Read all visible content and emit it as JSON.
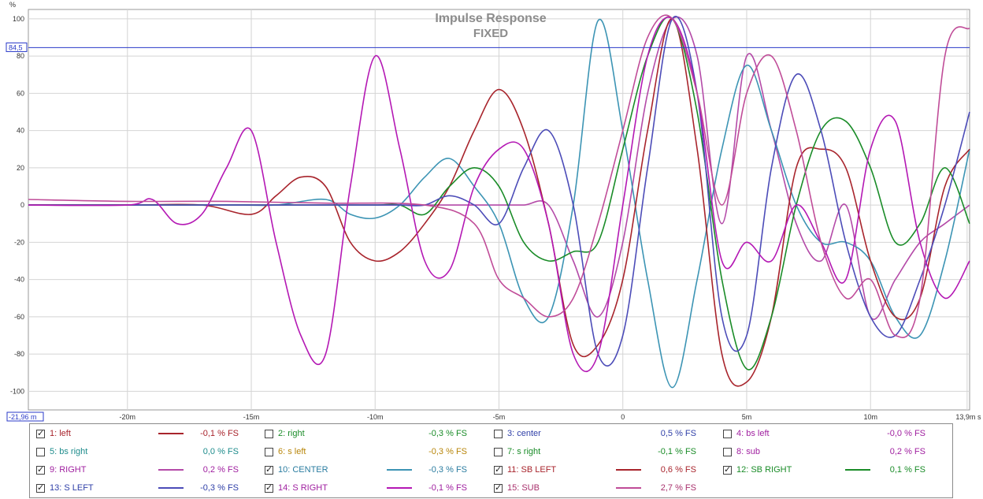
{
  "chart_data": {
    "type": "line",
    "title": "Impulse Response",
    "subtitle": "FIXED",
    "ylabel": "%",
    "x_unit_label": "s",
    "xlim": [
      -24,
      14
    ],
    "ylim": [
      -110,
      105
    ],
    "x_ticks": [
      {
        "value": -20,
        "label": "-20m"
      },
      {
        "value": -15,
        "label": "-15m"
      },
      {
        "value": -10,
        "label": "-10m"
      },
      {
        "value": -5,
        "label": "-5m"
      },
      {
        "value": 0,
        "label": "0"
      },
      {
        "value": 5,
        "label": "5m"
      },
      {
        "value": 10,
        "label": "10m"
      },
      {
        "value": 13.9,
        "label": "13,9m"
      }
    ],
    "y_ticks": [
      {
        "value": 100,
        "label": "100"
      },
      {
        "value": 80,
        "label": "80"
      },
      {
        "value": 60,
        "label": "60"
      },
      {
        "value": 40,
        "label": "40"
      },
      {
        "value": 20,
        "label": "20"
      },
      {
        "value": 0,
        "label": "0"
      },
      {
        "value": -20,
        "label": "-20"
      },
      {
        "value": -40,
        "label": "-40"
      },
      {
        "value": -60,
        "label": "-60"
      },
      {
        "value": -80,
        "label": "-80"
      },
      {
        "value": -100,
        "label": "-100"
      }
    ],
    "cursor_y": {
      "value": 84.5,
      "label": "84,5"
    },
    "cursor_x": {
      "label": "-21,96 m"
    },
    "grid": true,
    "series": [
      {
        "name": "9: RIGHT",
        "color": "#b44aa8",
        "x": [
          -24,
          -20,
          -18,
          -17,
          -16,
          -15,
          -14,
          -13,
          -12,
          -11,
          -10,
          -9,
          -8,
          -7,
          -6,
          -5,
          -4,
          -3,
          -2,
          -1,
          0,
          1,
          2,
          3,
          4,
          5,
          6,
          7,
          8,
          9,
          10,
          11,
          12,
          13,
          14
        ],
        "y": [
          0,
          0,
          0,
          0,
          0,
          0,
          0,
          0,
          0,
          0,
          0,
          0,
          0,
          0,
          0,
          0,
          0,
          0,
          -30,
          -60,
          -20,
          60,
          100,
          80,
          -10,
          80,
          40,
          -10,
          -30,
          0,
          -60,
          -40,
          -20,
          -10,
          0
        ]
      },
      {
        "name": "10: CENTER",
        "color": "#3c94b4",
        "x": [
          -24,
          -16,
          -14,
          -12,
          -11,
          -10,
          -9,
          -8,
          -7,
          -6,
          -5,
          -4,
          -3,
          -2,
          -1,
          0,
          1,
          2,
          3,
          4,
          5,
          6,
          7,
          8,
          9,
          10,
          11,
          12,
          13,
          14
        ],
        "y": [
          0,
          0,
          0,
          3,
          -5,
          -7,
          0,
          15,
          25,
          10,
          -10,
          -50,
          -60,
          0,
          99,
          40,
          -40,
          -98,
          -40,
          30,
          75,
          40,
          0,
          -20,
          -20,
          -30,
          -60,
          -70,
          -30,
          30
        ]
      },
      {
        "name": "11: SB LEFT",
        "color": "#a8242c",
        "x": [
          -24,
          -20,
          -17,
          -15,
          -14,
          -13,
          -12,
          -11,
          -10,
          -9,
          -8,
          -7,
          -6,
          -5,
          -4,
          -3,
          -2,
          -1,
          0,
          1,
          2,
          3,
          4,
          5,
          6,
          7,
          8,
          9,
          10,
          11,
          12,
          13,
          14
        ],
        "y": [
          0,
          0,
          0,
          -5,
          5,
          15,
          10,
          -20,
          -30,
          -25,
          -10,
          10,
          40,
          62,
          40,
          -10,
          -75,
          -75,
          -40,
          40,
          100,
          30,
          -80,
          -95,
          -60,
          20,
          30,
          20,
          -30,
          -60,
          -50,
          10,
          30
        ]
      },
      {
        "name": "12: SB RIGHT",
        "color": "#1a8c28",
        "x": [
          -24,
          -14,
          -12,
          -10,
          -9,
          -8,
          -7,
          -6,
          -5,
          -4,
          -3,
          -2,
          -1,
          0,
          1,
          2,
          3,
          4,
          5,
          6,
          7,
          8,
          9,
          10,
          11,
          12,
          13,
          14
        ],
        "y": [
          0,
          0,
          0,
          0,
          0,
          -5,
          10,
          20,
          10,
          -20,
          -30,
          -25,
          -20,
          30,
          80,
          100,
          50,
          -40,
          -88,
          -60,
          0,
          40,
          45,
          20,
          -20,
          -10,
          20,
          -10
        ]
      },
      {
        "name": "13: S LEFT",
        "color": "#4c4cb8",
        "x": [
          -24,
          -15,
          -12,
          -10,
          -9,
          -8,
          -7,
          -6,
          -5,
          -4,
          -3,
          -2,
          -1,
          0,
          1,
          2,
          3,
          4,
          5,
          6,
          7,
          8,
          9,
          10,
          11,
          12,
          13,
          14
        ],
        "y": [
          0,
          0,
          0,
          0,
          0,
          0,
          5,
          0,
          -10,
          20,
          40,
          0,
          -80,
          -70,
          20,
          100,
          60,
          -60,
          -70,
          20,
          70,
          40,
          -20,
          -60,
          -70,
          -40,
          0,
          50
        ]
      },
      {
        "name": "14: S RIGHT",
        "color": "#b418b4",
        "x": [
          -24,
          -20,
          -19,
          -18,
          -17,
          -16,
          -15,
          -14,
          -13,
          -12,
          -11,
          -10,
          -9,
          -8,
          -7,
          -6,
          -5,
          -4,
          -3,
          -2,
          -1,
          0,
          1,
          2,
          3,
          4,
          5,
          6,
          7,
          8,
          9,
          10,
          11,
          12,
          13,
          14
        ],
        "y": [
          0,
          0,
          3,
          -10,
          -5,
          20,
          40,
          -20,
          -70,
          -80,
          10,
          80,
          30,
          -30,
          -35,
          10,
          30,
          30,
          -10,
          -80,
          -80,
          0,
          80,
          100,
          60,
          -30,
          -20,
          -30,
          0,
          -20,
          -40,
          30,
          45,
          -20,
          -50,
          -30
        ]
      },
      {
        "name": "15: SUB",
        "color": "#c04c98",
        "x": [
          -24,
          -20,
          -16,
          -12,
          -8,
          -6,
          -5,
          -4,
          -3,
          -2,
          -1,
          0,
          1,
          2,
          3,
          4,
          5,
          6,
          7,
          8,
          9,
          10,
          11,
          12,
          13,
          14
        ],
        "y": [
          3,
          2,
          2,
          1,
          0,
          -10,
          -40,
          -50,
          -60,
          -50,
          -10,
          40,
          90,
          100,
          60,
          0,
          60,
          80,
          40,
          -20,
          -50,
          -40,
          -70,
          -50,
          80,
          95
        ]
      }
    ]
  },
  "legend": {
    "items": [
      {
        "label": "1: left",
        "checked": true,
        "color": "#a8242c",
        "value": "-0,1 % FS",
        "value_color": "#a8242c"
      },
      {
        "label": "2: right",
        "checked": false,
        "color": "none",
        "value": "-0,3 % FS",
        "value_color": "#1a8c28"
      },
      {
        "label": "3: center",
        "checked": false,
        "color": "none",
        "value": "0,5 % FS",
        "value_color": "#3040a8"
      },
      {
        "label": "4: bs left",
        "checked": false,
        "color": "none",
        "value": "-0,0 % FS",
        "value_color": "#a020a0"
      },
      {
        "label": "5: bs right",
        "checked": false,
        "color": "none",
        "value": "0,0 % FS",
        "value_color": "#1e8c8c"
      },
      {
        "label": "6: s left",
        "checked": false,
        "color": "none",
        "value": "-0,3 % FS",
        "value_color": "#b8860b"
      },
      {
        "label": "7: s right",
        "checked": false,
        "color": "none",
        "value": "-0,1 % FS",
        "value_color": "#1a8c28"
      },
      {
        "label": "8: sub",
        "checked": false,
        "color": "none",
        "value": "0,2 % FS",
        "value_color": "#a020a0"
      },
      {
        "label": "9: RIGHT",
        "checked": true,
        "color": "#b44aa8",
        "value": "0,2 % FS",
        "value_color": "#a020a0"
      },
      {
        "label": "10: CENTER",
        "checked": true,
        "color": "#3c94b4",
        "value": "-0,3 % FS",
        "value_color": "#2a7ca0"
      },
      {
        "label": "11: SB LEFT",
        "checked": true,
        "color": "#a8242c",
        "value": "0,6 % FS",
        "value_color": "#a8242c"
      },
      {
        "label": "12: SB RIGHT",
        "checked": true,
        "color": "#1a8c28",
        "value": "0,1 % FS",
        "value_color": "#1a8c28"
      },
      {
        "label": "13: S LEFT",
        "checked": true,
        "color": "#4c4cb8",
        "value": "-0,3 % FS",
        "value_color": "#3040a8"
      },
      {
        "label": "14: S RIGHT",
        "checked": true,
        "color": "#b418b4",
        "value": "-0,1 % FS",
        "value_color": "#a020a0"
      },
      {
        "label": "15: SUB",
        "checked": true,
        "color": "#c04c98",
        "value": "2,7 % FS",
        "value_color": "#a8306c"
      }
    ]
  }
}
